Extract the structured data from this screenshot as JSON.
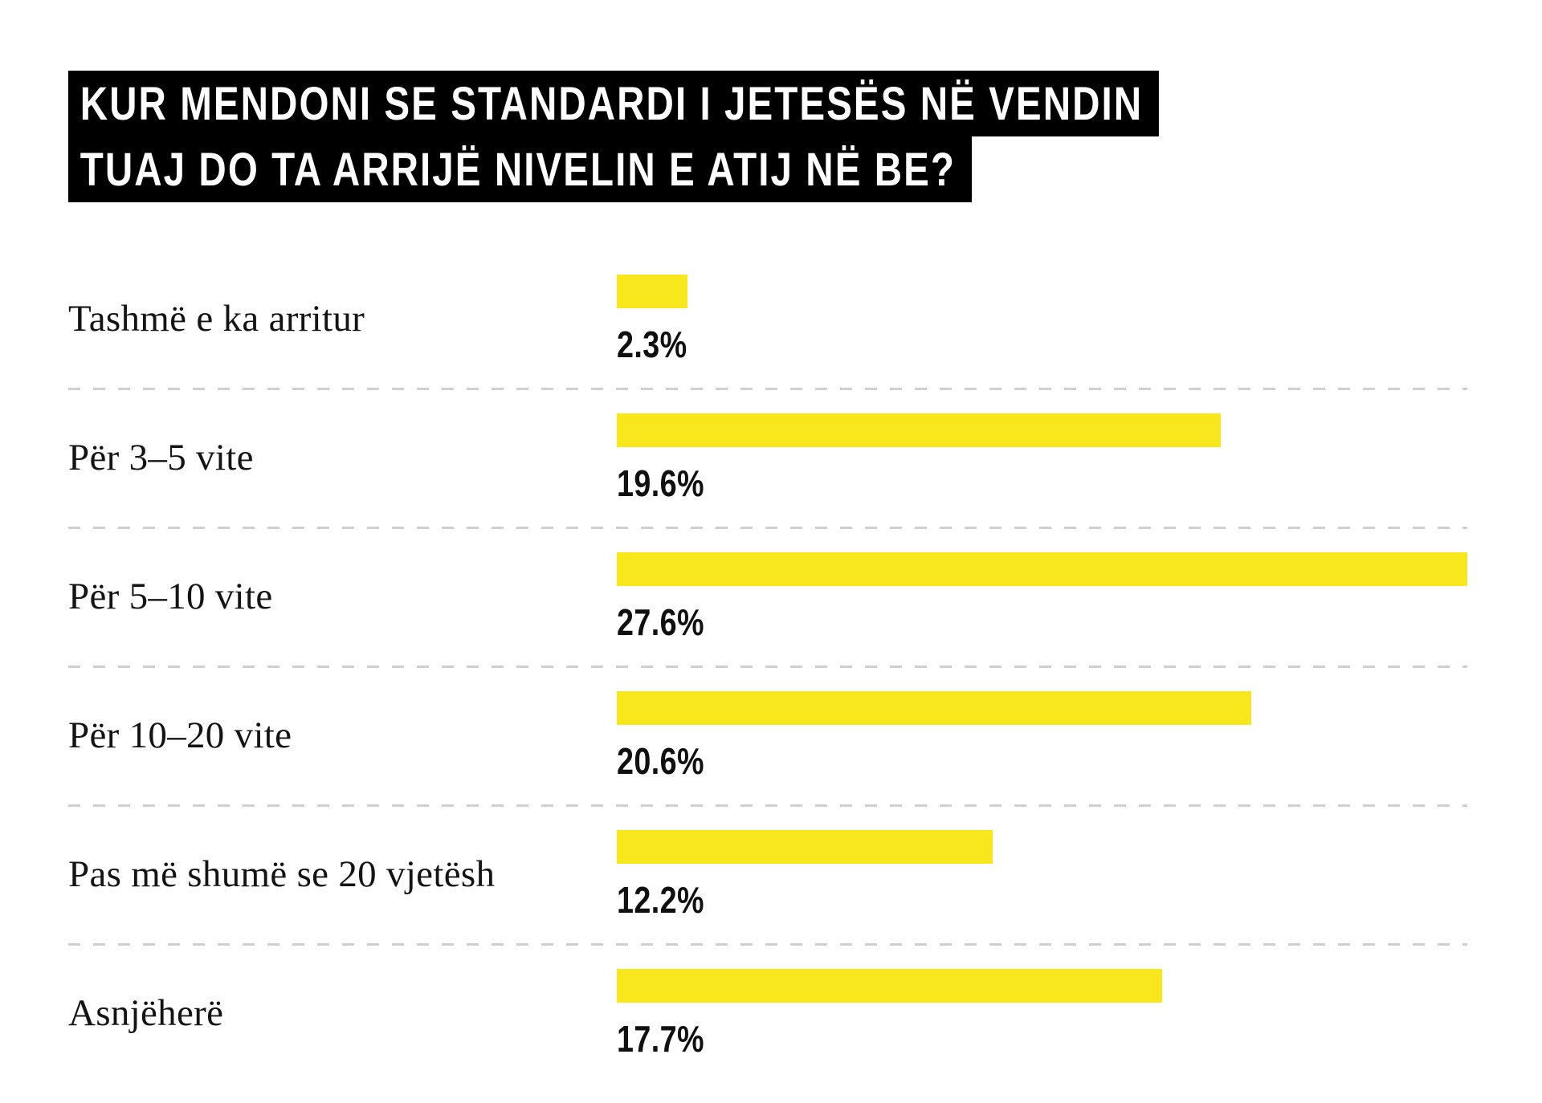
{
  "title": {
    "lines": [
      "KUR MENDONI SE STANDARDI I JETESËS NË VENDIN",
      "TUAJ DO TA ARRIJË NIVELIN E ATIJ NË BE?"
    ]
  },
  "colors": {
    "bar": "#F8E71C",
    "title_bg": "#000000",
    "title_text": "#FFFFFF",
    "text": "#141414",
    "separator": "#CFCFCF"
  },
  "chart_data": {
    "type": "bar",
    "orientation": "horizontal",
    "title": "KUR MENDONI SE STANDARDI I JETESËS NË VENDIN TUAJ DO TA ARRIJË NIVELIN E ATIJ NË BE?",
    "categories": [
      "Tashmë e ka arritur",
      "Për 3–5 vite",
      "Për 5–10 vite",
      "Për 10–20 vite",
      "Pas më shumë se 20 vjetësh",
      "Asnjëherë"
    ],
    "values": [
      2.3,
      19.6,
      27.6,
      20.6,
      12.2,
      17.7
    ],
    "value_labels": [
      "2.3%",
      "19.6%",
      "27.6%",
      "20.6%",
      "12.2%",
      "17.7%"
    ],
    "xlabel": "",
    "ylabel": "",
    "xlim": [
      0,
      27.6
    ],
    "grid": false,
    "legend": false,
    "separator_style": "dashed"
  }
}
